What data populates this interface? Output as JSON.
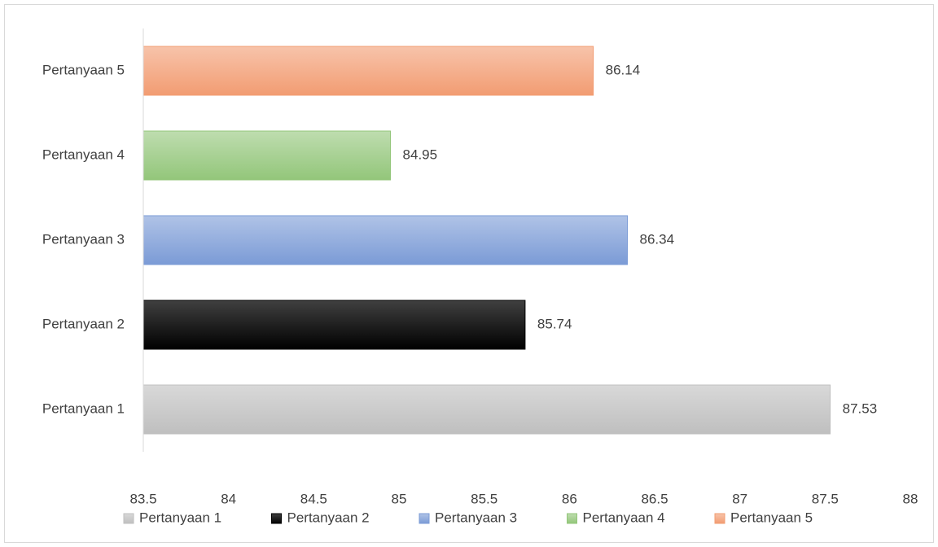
{
  "chart_data": {
    "type": "hbar",
    "categories": [
      "Pertanyaan 1",
      "Pertanyaan 2",
      "Pertanyaan 3",
      "Pertanyaan 4",
      "Pertanyaan 5"
    ],
    "values": [
      87.53,
      85.74,
      86.34,
      84.95,
      86.14
    ],
    "colors": [
      "#bfbfbf",
      "#000000",
      "#7b9bd6",
      "#93c67a",
      "#f29c72"
    ],
    "xlim": [
      83.5,
      88
    ],
    "xticks": [
      83.5,
      84,
      84.5,
      85,
      85.5,
      86,
      86.5,
      87,
      87.5,
      88
    ],
    "grid": false,
    "legend": "bottom"
  }
}
